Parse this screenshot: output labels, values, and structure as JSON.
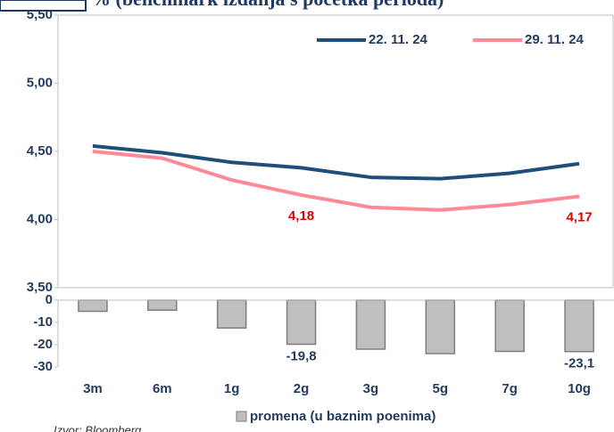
{
  "title": "% (benchmark izdanja s početka perioda)",
  "source": "Izvor: Bloomberg",
  "chart_data": [
    {
      "type": "line",
      "series": [
        {
          "name": "22. 11. 24",
          "color": "#1f4e79",
          "values": [
            4.54,
            4.49,
            4.42,
            4.38,
            4.31,
            4.3,
            4.34,
            4.41
          ]
        },
        {
          "name": "29. 11. 24",
          "color": "#ff8a96",
          "values": [
            4.5,
            4.45,
            4.29,
            4.18,
            4.09,
            4.07,
            4.11,
            4.17
          ],
          "value_labels": [
            null,
            null,
            null,
            "4,18",
            null,
            null,
            null,
            "4,17"
          ]
        }
      ],
      "ylim": [
        3.5,
        5.5
      ],
      "yticks": [
        {
          "value": 3.5,
          "label": "3,50"
        },
        {
          "value": 4,
          "label": "4,00"
        },
        {
          "value": 4.5,
          "label": "4,50"
        },
        {
          "value": 5,
          "label": "5,00"
        },
        {
          "value": 5.5,
          "label": "5,50"
        }
      ],
      "legend": "top-right"
    },
    {
      "type": "bar",
      "categories": [
        "3m",
        "6m",
        "1g",
        "2g",
        "3g",
        "5g",
        "7g",
        "10g"
      ],
      "series": [
        {
          "name": "promena (u baznim poenima)",
          "color": "#bfbfbf",
          "values": [
            -5,
            -4.5,
            -12.5,
            -19.8,
            -22,
            -24,
            -23,
            -23.1
          ],
          "value_labels": [
            null,
            null,
            null,
            "-19,8",
            null,
            null,
            null,
            "-23,1"
          ]
        }
      ],
      "ylim": [
        -30,
        0
      ],
      "yticks": [
        0,
        -10,
        -20,
        -30
      ],
      "legend": "bottom"
    }
  ]
}
